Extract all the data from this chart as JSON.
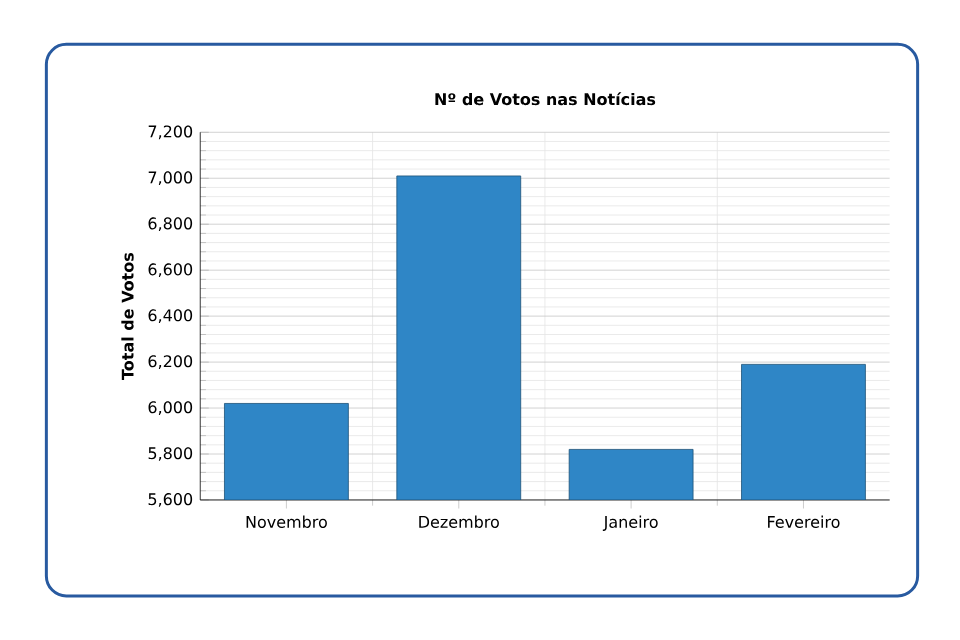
{
  "chart_data": {
    "type": "bar",
    "title": "Nº de Votos nas Notícias",
    "ylabel": "Total de Votos",
    "categories": [
      "Novembro",
      "Dezembro",
      "Janeiro",
      "Fevereiro"
    ],
    "values": [
      6020,
      7010,
      5820,
      6190
    ],
    "color": "#2f86c6",
    "ylim": [
      5600,
      7200
    ],
    "yticks": [
      {
        "value": 5600,
        "label": "5,600"
      },
      {
        "value": 5800,
        "label": "5,800"
      },
      {
        "value": 6000,
        "label": "6,000"
      },
      {
        "value": 6200,
        "label": "6,200"
      },
      {
        "value": 6400,
        "label": "6,400"
      },
      {
        "value": 6600,
        "label": "6,600"
      },
      {
        "value": 6800,
        "label": "6,800"
      },
      {
        "value": 7000,
        "label": "7,000"
      },
      {
        "value": 7200,
        "label": "7,200"
      }
    ],
    "grid": true
  }
}
